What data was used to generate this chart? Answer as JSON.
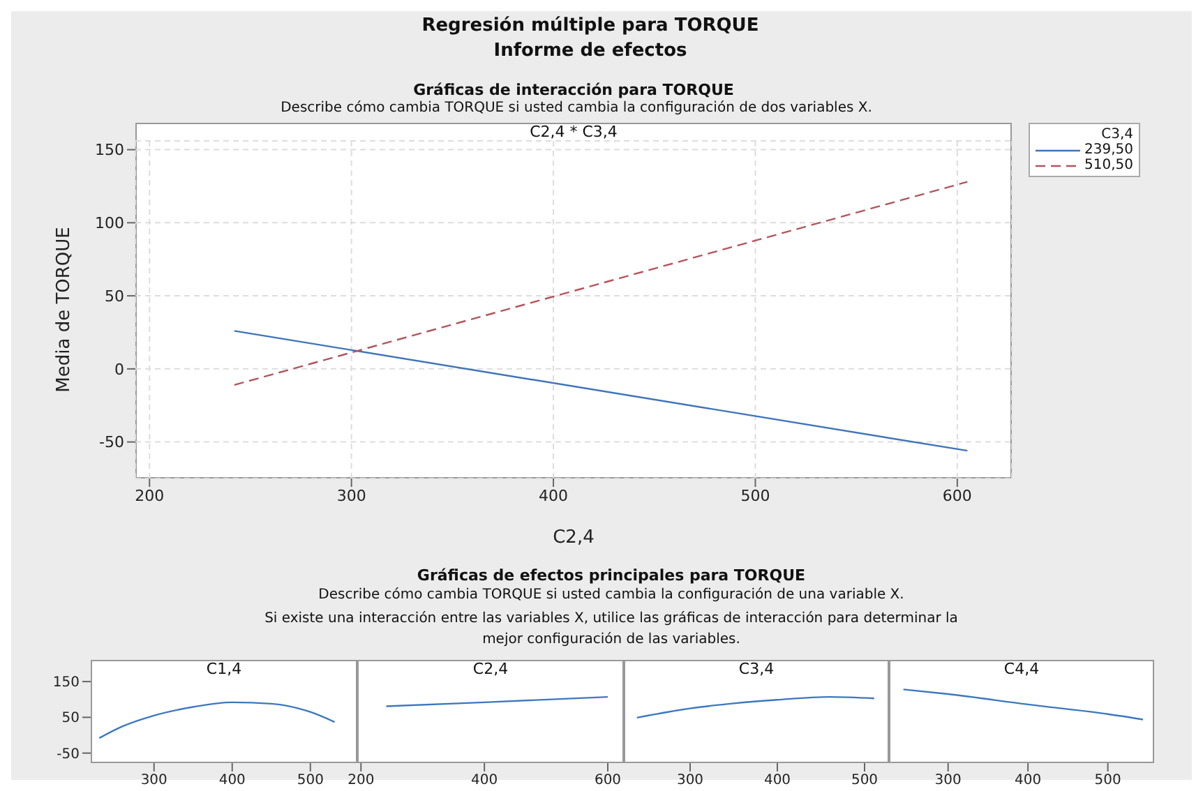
{
  "chart_data": [
    {
      "type": "line",
      "title": "Regresión múltiple para TORQUE",
      "subtitle": "Informe de efectos",
      "annotations": [
        "Gráficas de interacción para TORQUE",
        "Describe cómo cambia TORQUE si usted cambia la configuración de dos variables X.",
        "C2,4 * C3,4"
      ],
      "xlabel": "C2,4",
      "ylabel": "Media de TORQUE",
      "legend_title": "C3,4",
      "legend": "top right",
      "grid": true,
      "marker": "none",
      "xlim": [
        193,
        627
      ],
      "xticks": [
        200,
        300,
        400,
        500,
        600
      ],
      "ylim": [
        -75,
        156
      ],
      "yticks": [
        -50,
        0,
        50,
        100,
        150
      ],
      "series": [
        {
          "name": "239,50",
          "color": "#3f74b8",
          "line_style": "solid",
          "x": [
            242,
            605
          ],
          "values": [
            26,
            -56
          ]
        },
        {
          "name": "510,50",
          "color": "#b5545c",
          "line_style": "dashed",
          "x": [
            242,
            605
          ],
          "values": [
            -11,
            128
          ]
        }
      ]
    },
    {
      "type": "line",
      "title": "C1,4",
      "annotations": [
        "Gráficas de efectos principales para TORQUE",
        "Describe cómo cambia TORQUE si usted cambia la configuración de una variable X.",
        "Si existe una interacción entre las variables X, utilice las gráficas de interacción para determinar la mejor configuración de las variables."
      ],
      "marker": "none",
      "xlim": [
        219,
        560
      ],
      "xticks": [
        300,
        400,
        500
      ],
      "ylim": [
        -78,
        160
      ],
      "yticks": [
        -50,
        50,
        150
      ],
      "series": [
        {
          "color": "#3c78c0",
          "x": [
            230,
            260,
            300,
            350,
            400,
            450,
            500,
            531
          ],
          "values": [
            -8,
            25,
            55,
            79,
            92,
            88,
            65,
            37
          ]
        }
      ]
    },
    {
      "type": "line",
      "title": "C2,4",
      "tick_labels": "x",
      "marker": "none",
      "xlim": [
        194,
        626
      ],
      "xticks": [
        200,
        400,
        600
      ],
      "ylim": [
        -78,
        160
      ],
      "yticks": [
        -50,
        50,
        150
      ],
      "series": [
        {
          "color": "#3c78c0",
          "x": [
            241,
            400,
            600
          ],
          "values": [
            81,
            92,
            107
          ]
        }
      ]
    },
    {
      "type": "line",
      "title": "C3,4",
      "tick_labels": "x",
      "marker": "none",
      "xlim": [
        224,
        528
      ],
      "xticks": [
        300,
        400,
        500
      ],
      "ylim": [
        -78,
        160
      ],
      "yticks": [
        -50,
        50,
        150
      ],
      "series": [
        {
          "color": "#3c78c0",
          "x": [
            239,
            300,
            350,
            400,
            460,
            511
          ],
          "values": [
            49,
            75,
            89,
            99,
            107,
            103
          ]
        }
      ]
    },
    {
      "type": "line",
      "title": "C4,4",
      "tick_labels": "x",
      "marker": "none",
      "xlim": [
        226,
        558
      ],
      "xticks": [
        300,
        400,
        500
      ],
      "ylim": [
        -78,
        160
      ],
      "yticks": [
        -50,
        50,
        150
      ],
      "series": [
        {
          "color": "#3c78c0",
          "x": [
            244,
            300,
            400,
            500,
            544
          ],
          "values": [
            128,
            115,
            86,
            59,
            44
          ]
        }
      ]
    }
  ]
}
